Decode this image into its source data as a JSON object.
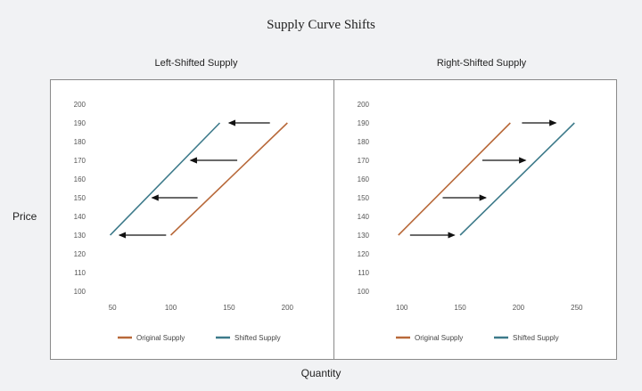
{
  "title": "Supply Curve Shifts",
  "xlabel": "Quantity",
  "ylabel": "Price",
  "colors": {
    "original": "#b8693a",
    "shifted": "#3d7a8a",
    "arrow": "#111111"
  },
  "chart_data": [
    {
      "type": "line",
      "title": "Left-Shifted Supply",
      "xlim": [
        30,
        225
      ],
      "xticks": [
        50,
        100,
        150,
        200
      ],
      "ylim": [
        100,
        200
      ],
      "yticks": [
        100,
        110,
        120,
        130,
        140,
        150,
        160,
        170,
        180,
        190,
        200
      ],
      "grid": false,
      "legend_position": "bottom",
      "series": [
        {
          "name": "Original Supply",
          "color": "#b8693a",
          "x": [
            100,
            200
          ],
          "y": [
            130,
            190
          ]
        },
        {
          "name": "Shifted Supply",
          "color": "#3d7a8a",
          "x": [
            48,
            142
          ],
          "y": [
            130,
            190
          ]
        }
      ],
      "arrows": [
        {
          "y": 190,
          "x_from": 185,
          "x_to": 150
        },
        {
          "y": 170,
          "x_from": 157,
          "x_to": 117
        },
        {
          "y": 150,
          "x_from": 123,
          "x_to": 84
        },
        {
          "y": 130,
          "x_from": 96,
          "x_to": 56
        }
      ]
    },
    {
      "type": "line",
      "title": "Right-Shifted Supply",
      "xlim": [
        75,
        270
      ],
      "xticks": [
        100,
        150,
        200,
        250
      ],
      "ylim": [
        100,
        200
      ],
      "yticks": [
        100,
        110,
        120,
        130,
        140,
        150,
        160,
        170,
        180,
        190,
        200
      ],
      "grid": false,
      "legend_position": "bottom",
      "series": [
        {
          "name": "Original Supply",
          "color": "#b8693a",
          "x": [
            97,
            193
          ],
          "y": [
            130,
            190
          ]
        },
        {
          "name": "Shifted Supply",
          "color": "#3d7a8a",
          "x": [
            150,
            248
          ],
          "y": [
            130,
            190
          ]
        }
      ],
      "arrows": [
        {
          "y": 190,
          "x_from": 203,
          "x_to": 232
        },
        {
          "y": 170,
          "x_from": 169,
          "x_to": 206
        },
        {
          "y": 150,
          "x_from": 135,
          "x_to": 172
        },
        {
          "y": 130,
          "x_from": 107,
          "x_to": 145
        }
      ]
    }
  ]
}
